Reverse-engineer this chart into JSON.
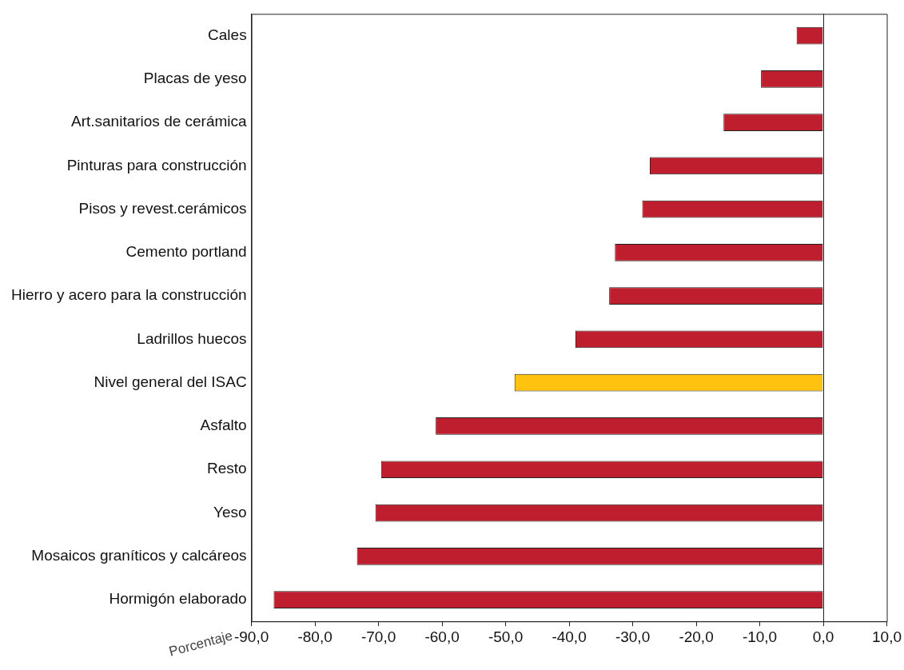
{
  "chart_data": {
    "type": "bar",
    "orientation": "horizontal",
    "xlabel": "Porcentaje",
    "categories": [
      "Cales",
      "Placas de yeso",
      "Art.sanitarios de cerámica",
      "Pinturas para construcción",
      "Pisos y revest.cerámicos",
      "Cemento portland",
      "Hierro y acero para la construcción",
      "Ladrillos huecos",
      "Nivel general del ISAC",
      "Asfalto",
      "Resto",
      "Yeso",
      "Mosaicos graníticos y calcáreos",
      "Hormigón elaborado"
    ],
    "values": [
      -4.2,
      -9.8,
      -15.7,
      -27.3,
      -28.5,
      -32.8,
      -33.7,
      -39.0,
      -48.6,
      -61.0,
      -69.6,
      -70.5,
      -73.4,
      -86.5
    ],
    "colors": [
      "#be1e2d",
      "#be1e2d",
      "#be1e2d",
      "#be1e2d",
      "#be1e2d",
      "#be1e2d",
      "#be1e2d",
      "#be1e2d",
      "#ffc20e",
      "#be1e2d",
      "#be1e2d",
      "#be1e2d",
      "#be1e2d",
      "#be1e2d"
    ],
    "xlim": [
      -90,
      10
    ],
    "xticks": [
      {
        "value": -90,
        "label": "-90,0"
      },
      {
        "value": -80,
        "label": "-80,0"
      },
      {
        "value": -70,
        "label": "-70,0"
      },
      {
        "value": -60,
        "label": "-60,0"
      },
      {
        "value": -50,
        "label": "-50,0"
      },
      {
        "value": -40,
        "label": "-40,0"
      },
      {
        "value": -30,
        "label": "-30,0"
      },
      {
        "value": -20,
        "label": "-20,0"
      },
      {
        "value": -10,
        "label": "-10,0"
      },
      {
        "value": 0,
        "label": "0,0"
      },
      {
        "value": 10,
        "label": "10,0"
      }
    ],
    "ref_lines": [
      {
        "axis": "x",
        "value": 0
      }
    ],
    "grid": false,
    "legend": false
  }
}
